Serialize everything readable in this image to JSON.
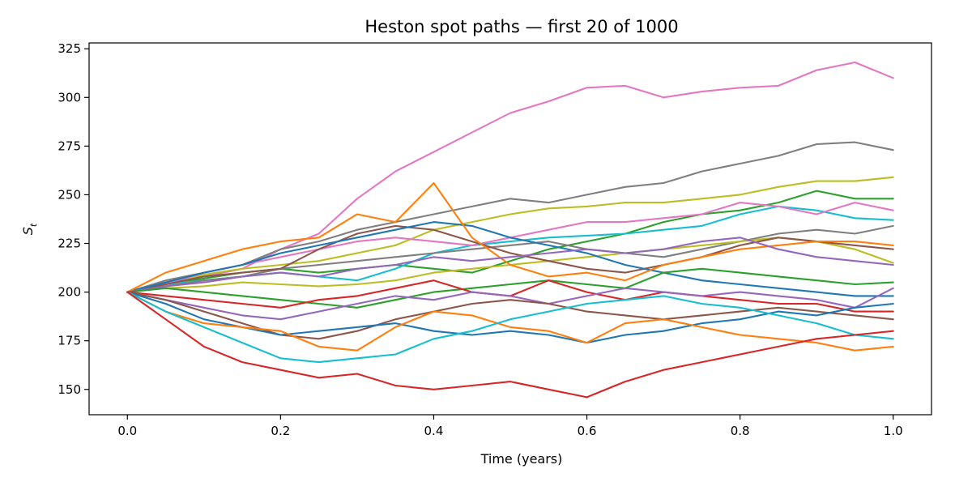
{
  "chart_data": {
    "type": "line",
    "title": "Heston spot paths — first 20 of 1000",
    "xlabel": "Time (years)",
    "ylabel": "S",
    "ylabel_subscript": "t",
    "xlim": [
      -0.05,
      1.05
    ],
    "ylim": [
      137,
      328
    ],
    "xticks": [
      0.0,
      0.2,
      0.4,
      0.6,
      0.8,
      1.0
    ],
    "xtick_labels": [
      "0.0",
      "0.2",
      "0.4",
      "0.6",
      "0.8",
      "1.0"
    ],
    "yticks": [
      150,
      175,
      200,
      225,
      250,
      275,
      300,
      325
    ],
    "ytick_labels": [
      "150",
      "175",
      "200",
      "225",
      "250",
      "275",
      "300",
      "325"
    ],
    "grid": false,
    "legend": "none",
    "x": [
      0.0,
      0.05,
      0.1,
      0.15,
      0.2,
      0.25,
      0.3,
      0.35,
      0.4,
      0.45,
      0.5,
      0.55,
      0.6,
      0.65,
      0.7,
      0.75,
      0.8,
      0.85,
      0.9,
      0.95,
      1.0
    ],
    "series": [
      {
        "color": "#e377c2",
        "values": [
          200,
          205,
          208,
          212,
          222,
          230,
          248,
          262,
          272,
          282,
          292,
          298,
          305,
          306,
          300,
          303,
          305,
          306,
          314,
          318,
          310
        ]
      },
      {
        "color": "#7f7f7f",
        "values": [
          200,
          206,
          210,
          214,
          222,
          226,
          232,
          236,
          240,
          244,
          248,
          246,
          250,
          254,
          256,
          262,
          266,
          270,
          276,
          277,
          273
        ]
      },
      {
        "color": "#bcbd22",
        "values": [
          200,
          204,
          209,
          212,
          214,
          216,
          220,
          224,
          232,
          236,
          240,
          243,
          244,
          246,
          246,
          248,
          250,
          254,
          257,
          257,
          259
        ]
      },
      {
        "color": "#2ca02c",
        "values": [
          200,
          204,
          207,
          210,
          212,
          210,
          212,
          214,
          212,
          210,
          216,
          222,
          226,
          230,
          236,
          240,
          242,
          246,
          252,
          248,
          248
        ]
      },
      {
        "color": "#17becf",
        "values": [
          200,
          204,
          206,
          208,
          210,
          208,
          206,
          212,
          220,
          224,
          226,
          228,
          229,
          230,
          232,
          234,
          240,
          244,
          242,
          238,
          237
        ]
      },
      {
        "color": "#e377c2",
        "values": [
          200,
          204,
          210,
          214,
          218,
          222,
          226,
          228,
          226,
          224,
          228,
          232,
          236,
          236,
          238,
          240,
          246,
          244,
          240,
          246,
          242
        ]
      },
      {
        "color": "#7f7f7f",
        "values": [
          200,
          203,
          206,
          208,
          212,
          214,
          216,
          218,
          220,
          222,
          224,
          226,
          222,
          220,
          218,
          222,
          226,
          230,
          232,
          230,
          234
        ]
      },
      {
        "color": "#bcbd22",
        "values": [
          200,
          202,
          203,
          205,
          204,
          203,
          204,
          206,
          210,
          212,
          214,
          216,
          218,
          220,
          222,
          224,
          226,
          228,
          226,
          222,
          215
        ]
      },
      {
        "color": "#8c564b",
        "values": [
          200,
          204,
          208,
          210,
          212,
          222,
          230,
          234,
          232,
          226,
          220,
          216,
          212,
          210,
          214,
          218,
          224,
          228,
          226,
          224,
          222
        ]
      },
      {
        "color": "#1f77b4",
        "values": [
          200,
          205,
          210,
          214,
          220,
          224,
          228,
          232,
          236,
          234,
          228,
          224,
          220,
          214,
          210,
          206,
          204,
          202,
          200,
          198,
          198
        ]
      },
      {
        "color": "#ff7f0e",
        "values": [
          200,
          210,
          216,
          222,
          226,
          228,
          240,
          236,
          256,
          228,
          214,
          208,
          210,
          206,
          214,
          218,
          222,
          224,
          226,
          226,
          224
        ]
      },
      {
        "color": "#9467bd",
        "values": [
          200,
          203,
          205,
          208,
          210,
          208,
          212,
          214,
          218,
          216,
          218,
          220,
          222,
          220,
          222,
          226,
          228,
          222,
          218,
          216,
          214
        ]
      },
      {
        "color": "#2ca02c",
        "values": [
          200,
          202,
          200,
          198,
          196,
          194,
          192,
          196,
          200,
          202,
          204,
          206,
          204,
          202,
          210,
          212,
          210,
          208,
          206,
          204,
          205
        ]
      },
      {
        "color": "#d62728",
        "values": [
          200,
          198,
          196,
          194,
          192,
          196,
          198,
          202,
          206,
          200,
          198,
          206,
          200,
          196,
          200,
          198,
          196,
          194,
          194,
          190,
          190
        ]
      },
      {
        "color": "#9467bd",
        "values": [
          200,
          196,
          192,
          188,
          186,
          190,
          194,
          198,
          196,
          200,
          198,
          194,
          198,
          202,
          200,
          198,
          200,
          198,
          196,
          192,
          202
        ]
      },
      {
        "color": "#8c564b",
        "values": [
          200,
          196,
          190,
          184,
          178,
          176,
          180,
          186,
          190,
          194,
          196,
          194,
          190,
          188,
          186,
          188,
          190,
          192,
          190,
          188,
          186
        ]
      },
      {
        "color": "#1f77b4",
        "values": [
          200,
          194,
          186,
          182,
          178,
          180,
          182,
          184,
          180,
          178,
          180,
          178,
          174,
          178,
          180,
          184,
          186,
          190,
          188,
          192,
          194
        ]
      },
      {
        "color": "#ff7f0e",
        "values": [
          200,
          190,
          184,
          182,
          180,
          172,
          170,
          182,
          190,
          188,
          182,
          180,
          174,
          184,
          186,
          182,
          178,
          176,
          174,
          170,
          172
        ]
      },
      {
        "color": "#17becf",
        "values": [
          200,
          190,
          182,
          174,
          166,
          164,
          166,
          168,
          176,
          180,
          186,
          190,
          194,
          196,
          198,
          194,
          192,
          188,
          184,
          178,
          176
        ]
      },
      {
        "color": "#d62728",
        "values": [
          200,
          186,
          172,
          164,
          160,
          156,
          158,
          152,
          150,
          152,
          154,
          150,
          146,
          154,
          160,
          164,
          168,
          172,
          176,
          178,
          180
        ]
      }
    ]
  }
}
